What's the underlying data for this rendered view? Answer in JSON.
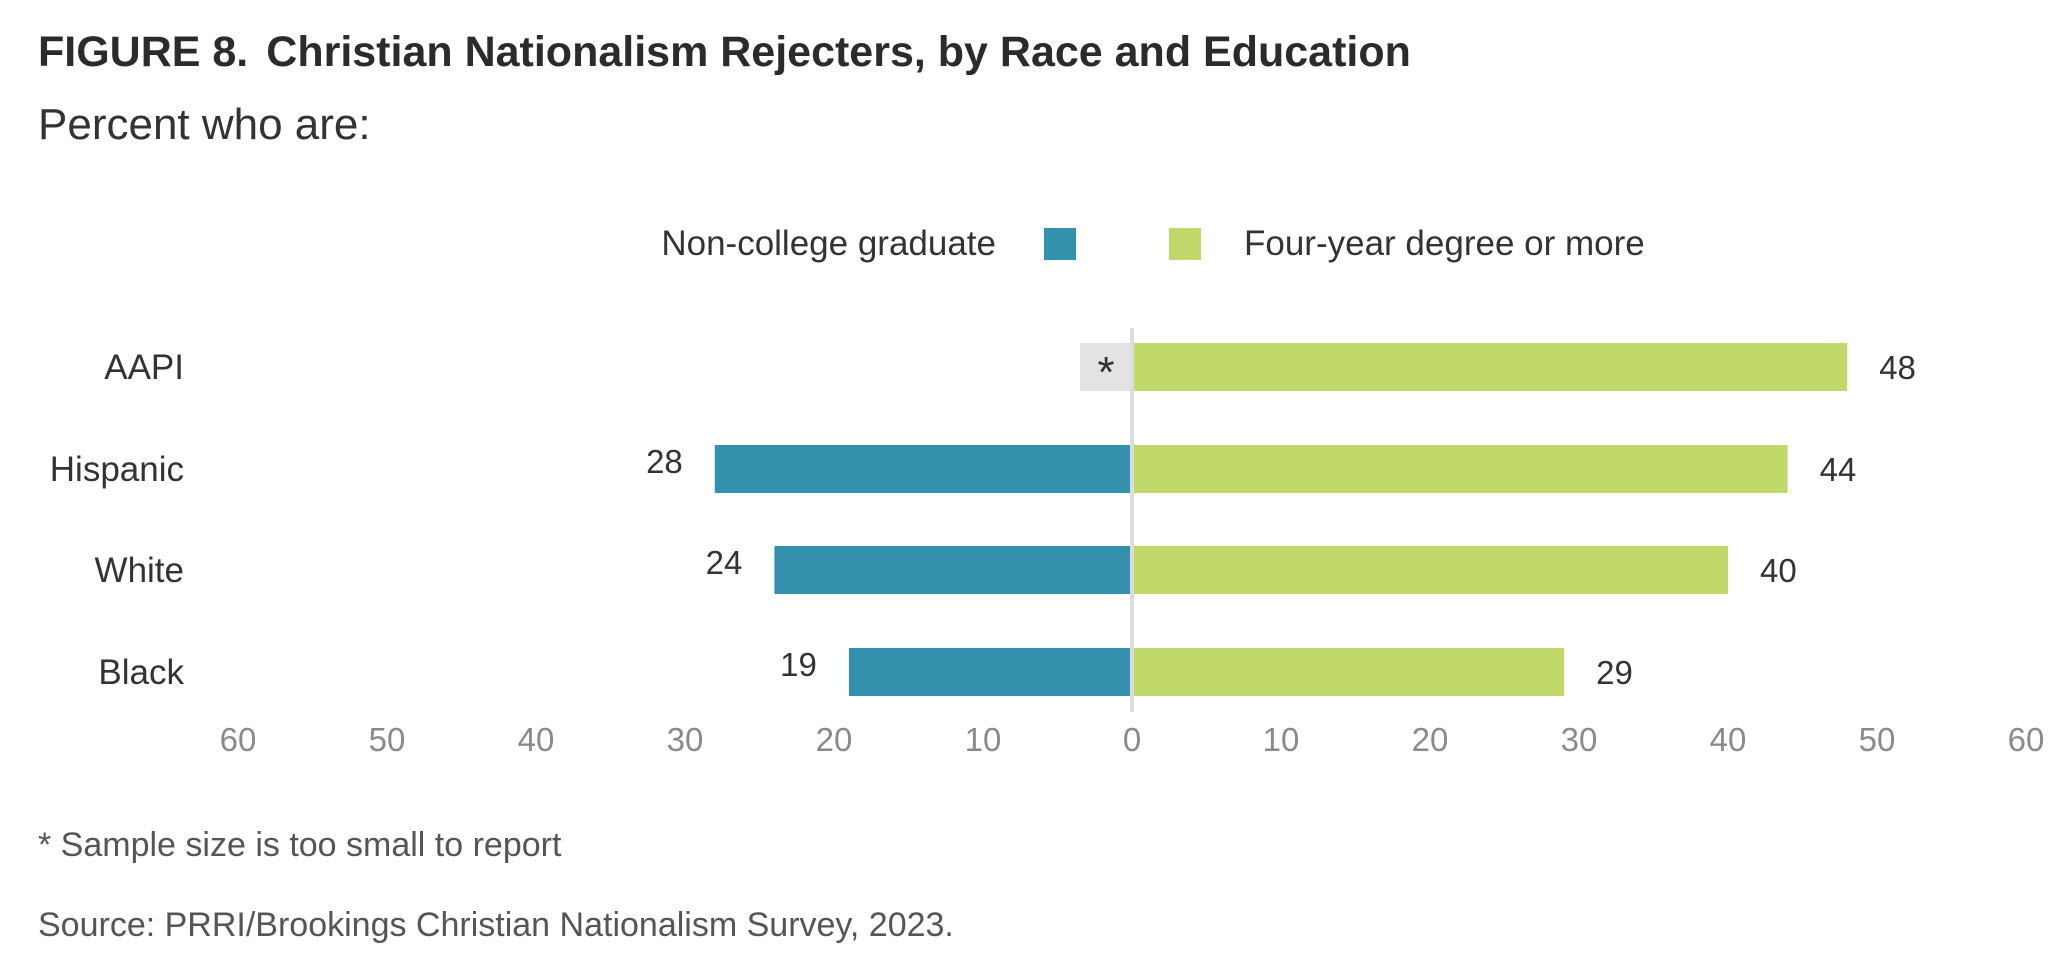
{
  "figure_label": "FIGURE 8.",
  "title": "Christian Nationalism Rejecters, by Race and Education",
  "subtitle": "Percent who are:",
  "chart_data": {
    "type": "bar",
    "orientation": "horizontal-diverging",
    "categories": [
      "AAPI",
      "Hispanic",
      "White",
      "Black"
    ],
    "series": [
      {
        "name": "Non-college graduate",
        "color": "#3391ae",
        "side": "left",
        "values": [
          null,
          28,
          24,
          19
        ],
        "value_labels": [
          "*",
          "28",
          "24",
          "19"
        ]
      },
      {
        "name": "Four-year degree or more",
        "color": "#c1d96b",
        "side": "right",
        "values": [
          48,
          44,
          40,
          29
        ],
        "value_labels": [
          "48",
          "44",
          "40",
          "29"
        ]
      }
    ],
    "suppressed_marker": "*",
    "suppressed_color": "#e3e3e3",
    "xlim": [
      -60,
      60
    ],
    "x_ticks": [
      "60",
      "50",
      "40",
      "30",
      "20",
      "10",
      "0",
      "10",
      "20",
      "30",
      "40",
      "50",
      "60"
    ],
    "legend_position": "top-center",
    "grid": false
  },
  "footnote": "* Sample size is too small to report",
  "source": "Source: PRRI/Brookings Christian Nationalism Survey, 2023."
}
